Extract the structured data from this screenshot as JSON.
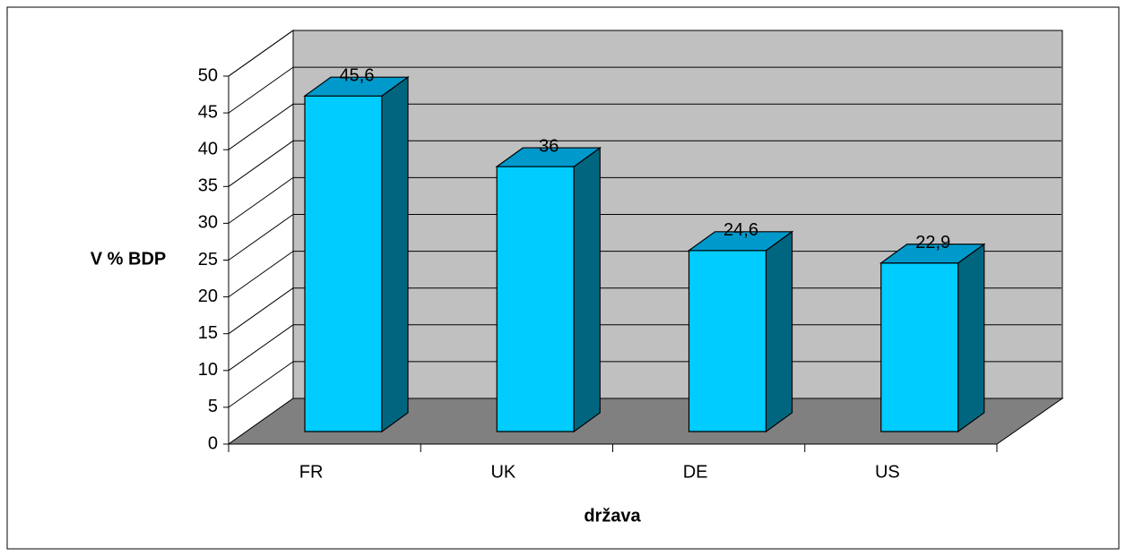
{
  "chart_data": {
    "type": "bar3d",
    "categories": [
      "FR",
      "UK",
      "DE",
      "US"
    ],
    "values": [
      45.6,
      36,
      24.6,
      22.9
    ],
    "value_labels": [
      "45,6",
      "36",
      "24,6",
      "22,9"
    ],
    "ylim": [
      0,
      50
    ],
    "yticks": [
      0,
      5,
      10,
      15,
      20,
      25,
      30,
      35,
      40,
      45,
      50
    ],
    "x_label": "država",
    "y_label": "V % BDP",
    "grid": true,
    "color": "#00ccff"
  }
}
